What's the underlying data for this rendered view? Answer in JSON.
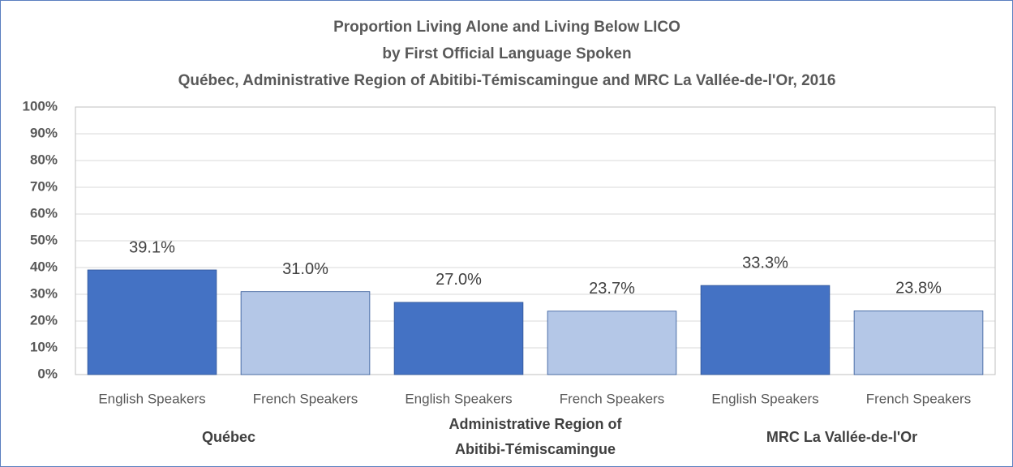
{
  "chart_data": {
    "type": "bar",
    "title": [
      "Proportion Living Alone and Living Below LICO",
      "by First Official Language Spoken",
      "Québec, Administrative Region of Abitibi-Témiscamingue and MRC La Vallée-de-l'Or, 2016"
    ],
    "categories": [
      "English Speakers",
      "French Speakers",
      "English Speakers",
      "French Speakers",
      "English Speakers",
      "French Speakers"
    ],
    "groups": [
      "Québec",
      "Administrative Region of Abitibi-Témiscamingue",
      "MRC La Vallée-de-l'Or"
    ],
    "values": [
      39.1,
      31.0,
      27.0,
      23.7,
      33.3,
      23.8
    ],
    "value_labels": [
      "39.1%",
      "31.0%",
      "27.0%",
      "23.7%",
      "33.3%",
      "23.8%"
    ],
    "colors": [
      "#4472c4",
      "#b4c7e7",
      "#4472c4",
      "#b4c7e7",
      "#4472c4",
      "#b4c7e7"
    ],
    "ylim": [
      0,
      100
    ],
    "yticks": [
      {
        "value": 0,
        "label": "0%"
      },
      {
        "value": 10,
        "label": "10%"
      },
      {
        "value": 20,
        "label": "20%"
      },
      {
        "value": 30,
        "label": "30%"
      },
      {
        "value": 40,
        "label": "40%"
      },
      {
        "value": 50,
        "label": "50%"
      },
      {
        "value": 60,
        "label": "60%"
      },
      {
        "value": 70,
        "label": "70%"
      },
      {
        "value": 80,
        "label": "80%"
      },
      {
        "value": 90,
        "label": "90%"
      },
      {
        "value": 100,
        "label": "100%"
      }
    ],
    "grid": true
  }
}
